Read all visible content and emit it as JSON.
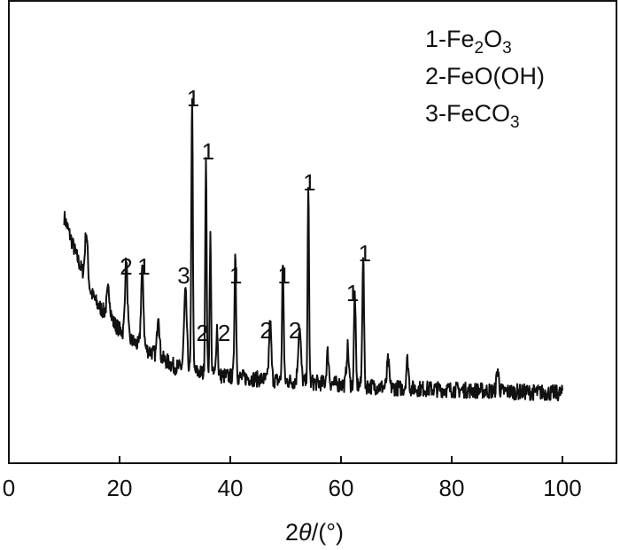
{
  "chart_data": {
    "type": "line",
    "xlabel_prefix": "2",
    "xlabel_symbol": "θ",
    "xlabel_suffix": "/(°)",
    "ylabel": "",
    "xlim": [
      0,
      105
    ],
    "x_ticks": [
      0,
      20,
      40,
      60,
      80,
      100
    ],
    "y_ticks_shown": false,
    "grid": false,
    "legend_position": "top-right",
    "legend": [
      {
        "prefix": "1-Fe",
        "parts": [
          {
            "t": "2",
            "sub": true
          },
          {
            "t": "O",
            "sub": false
          },
          {
            "t": "3",
            "sub": true
          }
        ]
      },
      {
        "prefix": "2-FeO(OH)",
        "parts": []
      },
      {
        "prefix": "3-FeCO",
        "parts": [
          {
            "t": "3",
            "sub": true
          }
        ]
      }
    ],
    "baseline": [
      [
        10,
        225
      ],
      [
        11,
        205
      ],
      [
        12,
        185
      ],
      [
        13,
        168
      ],
      [
        14,
        152
      ],
      [
        15,
        138
      ],
      [
        16,
        126
      ],
      [
        18,
        112
      ],
      [
        20,
        98
      ],
      [
        22,
        86
      ],
      [
        24,
        78
      ],
      [
        26,
        72
      ],
      [
        28,
        64
      ],
      [
        30,
        56
      ],
      [
        32,
        54
      ],
      [
        34,
        50
      ],
      [
        36,
        48
      ],
      [
        38,
        46
      ],
      [
        40,
        45
      ],
      [
        45,
        42
      ],
      [
        50,
        40
      ],
      [
        55,
        38
      ],
      [
        60,
        36
      ],
      [
        70,
        32
      ],
      [
        80,
        30
      ],
      [
        90,
        28
      ],
      [
        100,
        26
      ]
    ],
    "peaks": [
      {
        "x": 14.0,
        "h": 55,
        "w": 0.25
      },
      {
        "x": 18.0,
        "h": 30,
        "w": 0.3
      },
      {
        "x": 21.2,
        "h": 85,
        "w": 0.22
      },
      {
        "x": 24.1,
        "h": 88,
        "w": 0.22
      },
      {
        "x": 27.0,
        "h": 50,
        "w": 0.2
      },
      {
        "x": 31.9,
        "h": 85,
        "w": 0.25
      },
      {
        "x": 33.1,
        "h": 315,
        "w": 0.13
      },
      {
        "x": 35.6,
        "h": 240,
        "w": 0.13
      },
      {
        "x": 36.4,
        "h": 155,
        "w": 0.13
      },
      {
        "x": 37.6,
        "h": 55,
        "w": 0.15
      },
      {
        "x": 40.9,
        "h": 140,
        "w": 0.15
      },
      {
        "x": 47.2,
        "h": 65,
        "w": 0.2
      },
      {
        "x": 49.5,
        "h": 135,
        "w": 0.14
      },
      {
        "x": 52.5,
        "h": 60,
        "w": 0.25
      },
      {
        "x": 54.1,
        "h": 215,
        "w": 0.13
      },
      {
        "x": 57.6,
        "h": 35,
        "w": 0.2
      },
      {
        "x": 61.2,
        "h": 42,
        "w": 0.2
      },
      {
        "x": 62.5,
        "h": 105,
        "w": 0.15
      },
      {
        "x": 64.0,
        "h": 150,
        "w": 0.15
      },
      {
        "x": 68.5,
        "h": 30,
        "w": 0.2
      },
      {
        "x": 72.0,
        "h": 32,
        "w": 0.2
      },
      {
        "x": 88.3,
        "h": 25,
        "w": 0.2
      }
    ],
    "noise_amplitude": 9,
    "noise_seed": 7,
    "peak_labels": [
      {
        "text": "1",
        "x": 33.3,
        "level": 350
      },
      {
        "text": "1",
        "x": 36.0,
        "level": 290
      },
      {
        "text": "1",
        "x": 54.3,
        "level": 255
      },
      {
        "text": "2",
        "x": 21.2,
        "level": 160
      },
      {
        "text": "1",
        "x": 24.4,
        "level": 160
      },
      {
        "text": "3",
        "x": 31.6,
        "level": 150
      },
      {
        "text": "1",
        "x": 41.0,
        "level": 150
      },
      {
        "text": "1",
        "x": 49.7,
        "level": 150
      },
      {
        "text": "1",
        "x": 64.3,
        "level": 175
      },
      {
        "text": "1",
        "x": 62.1,
        "level": 130
      },
      {
        "text": "2",
        "x": 35.0,
        "level": 85
      },
      {
        "text": "2",
        "x": 38.9,
        "level": 85
      },
      {
        "text": "2",
        "x": 46.5,
        "level": 88
      },
      {
        "text": "2",
        "x": 51.7,
        "level": 88
      }
    ]
  }
}
